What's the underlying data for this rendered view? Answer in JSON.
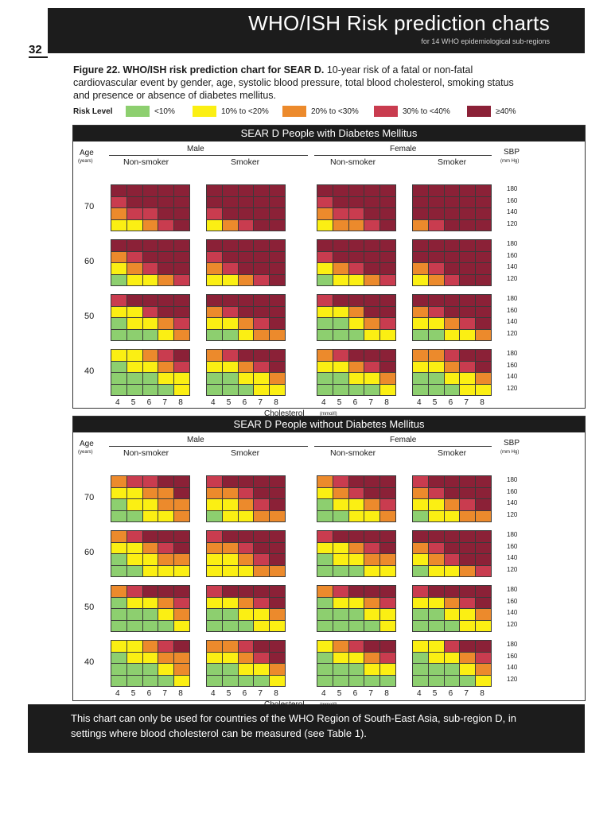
{
  "header": {
    "title": "WHO/ISH Risk prediction charts",
    "subtitle": "for 14 WHO epidemiological sub-regions"
  },
  "page_number": "32",
  "caption": {
    "label": "Figure 22. WHO/ISH risk prediction chart for SEAR D.",
    "text": "10-year risk of a fatal or non-fatal cardiovascular event by gender, age, systolic blood pressure, total blood cholesterol, smoking status and presence or absence of diabetes mellitus."
  },
  "legend": {
    "label": "Risk Level",
    "items": [
      {
        "text": "<10%",
        "color": "#8dcf6f"
      },
      {
        "text": "10% to <20%",
        "color": "#fbef13"
      },
      {
        "text": "20% to <30%",
        "color": "#ec8a2c"
      },
      {
        "text": "30% to <40%",
        "color": "#c93c4f"
      },
      {
        "text": "≥40%",
        "color": "#8b2137"
      }
    ]
  },
  "common": {
    "age_label": "Age",
    "age_unit": "(years)",
    "male": "Male",
    "female": "Female",
    "non_smoker": "Non-smoker",
    "smoker": "Smoker",
    "sbp": "SBP",
    "sbp_unit": "(mm Hg)",
    "cholesterol": "Cholesterol",
    "cholesterol_unit": "(mmol/l)",
    "ages": [
      "70",
      "60",
      "50",
      "40"
    ],
    "sbp_values": [
      "180",
      "160",
      "140",
      "120"
    ],
    "chol_values": [
      "4",
      "5",
      "6",
      "7",
      "8"
    ]
  },
  "chart_data": [
    {
      "type": "table",
      "title": "SEAR D People with Diabetes Mellitus",
      "note": "Risk level codes 1=<10%, 2=10% to <20%, 3=20% to <30%, 4=30% to <40%, 5=≥40%. Rows: SBP 180,160,140,120. Columns: cholesterol 4,5,6,7,8. Panel order: Male Non-smoker, Male Smoker, Female Non-smoker, Female Smoker.",
      "grids": [
        [
          [
            [
              5,
              5,
              5,
              5,
              5
            ],
            [
              4,
              5,
              5,
              5,
              5
            ],
            [
              3,
              4,
              4,
              5,
              5
            ],
            [
              2,
              2,
              3,
              4,
              5
            ]
          ],
          [
            [
              5,
              5,
              5,
              5,
              5
            ],
            [
              5,
              5,
              5,
              5,
              5
            ],
            [
              4,
              5,
              5,
              5,
              5
            ],
            [
              2,
              3,
              4,
              5,
              5
            ]
          ],
          [
            [
              5,
              5,
              5,
              5,
              5
            ],
            [
              4,
              5,
              5,
              5,
              5
            ],
            [
              3,
              4,
              4,
              5,
              5
            ],
            [
              2,
              3,
              3,
              4,
              5
            ]
          ],
          [
            [
              5,
              5,
              5,
              5,
              5
            ],
            [
              5,
              5,
              5,
              5,
              5
            ],
            [
              5,
              5,
              5,
              5,
              5
            ],
            [
              3,
              4,
              5,
              5,
              5
            ]
          ]
        ],
        [
          [
            [
              5,
              5,
              5,
              5,
              5
            ],
            [
              3,
              4,
              5,
              5,
              5
            ],
            [
              2,
              3,
              4,
              5,
              5
            ],
            [
              1,
              2,
              2,
              3,
              4
            ]
          ],
          [
            [
              5,
              5,
              5,
              5,
              5
            ],
            [
              4,
              5,
              5,
              5,
              5
            ],
            [
              3,
              4,
              5,
              5,
              5
            ],
            [
              2,
              2,
              3,
              4,
              5
            ]
          ],
          [
            [
              5,
              5,
              5,
              5,
              5
            ],
            [
              4,
              5,
              5,
              5,
              5
            ],
            [
              2,
              3,
              4,
              5,
              5
            ],
            [
              1,
              2,
              2,
              3,
              4
            ]
          ],
          [
            [
              5,
              5,
              5,
              5,
              5
            ],
            [
              5,
              5,
              5,
              5,
              5
            ],
            [
              3,
              4,
              5,
              5,
              5
            ],
            [
              2,
              3,
              4,
              5,
              5
            ]
          ]
        ],
        [
          [
            [
              4,
              5,
              5,
              5,
              5
            ],
            [
              2,
              2,
              4,
              5,
              5
            ],
            [
              1,
              2,
              2,
              3,
              4
            ],
            [
              1,
              1,
              1,
              2,
              3
            ]
          ],
          [
            [
              5,
              5,
              5,
              5,
              5
            ],
            [
              3,
              4,
              5,
              5,
              5
            ],
            [
              2,
              2,
              3,
              4,
              5
            ],
            [
              1,
              1,
              2,
              3,
              3
            ]
          ],
          [
            [
              4,
              5,
              5,
              5,
              5
            ],
            [
              2,
              2,
              3,
              5,
              5
            ],
            [
              1,
              1,
              2,
              3,
              4
            ],
            [
              1,
              1,
              1,
              2,
              2
            ]
          ],
          [
            [
              5,
              5,
              5,
              5,
              5
            ],
            [
              3,
              4,
              5,
              5,
              5
            ],
            [
              2,
              2,
              3,
              4,
              5
            ],
            [
              1,
              1,
              2,
              2,
              3
            ]
          ]
        ],
        [
          [
            [
              2,
              2,
              3,
              4,
              5
            ],
            [
              1,
              2,
              2,
              3,
              4
            ],
            [
              1,
              1,
              1,
              2,
              2
            ],
            [
              1,
              1,
              1,
              1,
              2
            ]
          ],
          [
            [
              3,
              4,
              5,
              5,
              5
            ],
            [
              2,
              2,
              3,
              4,
              5
            ],
            [
              1,
              1,
              2,
              2,
              3
            ],
            [
              1,
              1,
              1,
              2,
              2
            ]
          ],
          [
            [
              3,
              4,
              5,
              5,
              5
            ],
            [
              2,
              2,
              3,
              4,
              5
            ],
            [
              1,
              1,
              2,
              2,
              3
            ],
            [
              1,
              1,
              1,
              1,
              2
            ]
          ],
          [
            [
              3,
              3,
              4,
              5,
              5
            ],
            [
              2,
              2,
              3,
              4,
              5
            ],
            [
              1,
              1,
              2,
              2,
              3
            ],
            [
              1,
              1,
              1,
              2,
              2
            ]
          ]
        ]
      ]
    },
    {
      "type": "table",
      "title": "SEAR D People without Diabetes Mellitus",
      "note": "Same layout and codes as above.",
      "grids": [
        [
          [
            [
              3,
              4,
              4,
              5,
              5
            ],
            [
              2,
              2,
              3,
              3,
              5
            ],
            [
              1,
              2,
              2,
              3,
              3
            ],
            [
              1,
              1,
              2,
              2,
              3
            ]
          ],
          [
            [
              4,
              5,
              5,
              5,
              5
            ],
            [
              3,
              3,
              4,
              5,
              5
            ],
            [
              2,
              2,
              3,
              4,
              5
            ],
            [
              1,
              2,
              2,
              3,
              3
            ]
          ],
          [
            [
              3,
              4,
              5,
              5,
              5
            ],
            [
              2,
              3,
              4,
              5,
              5
            ],
            [
              1,
              2,
              2,
              3,
              4
            ],
            [
              1,
              1,
              2,
              2,
              3
            ]
          ],
          [
            [
              4,
              5,
              5,
              5,
              5
            ],
            [
              3,
              4,
              5,
              5,
              5
            ],
            [
              2,
              2,
              3,
              4,
              5
            ],
            [
              1,
              2,
              2,
              3,
              3
            ]
          ]
        ],
        [
          [
            [
              3,
              4,
              5,
              5,
              5
            ],
            [
              2,
              2,
              3,
              4,
              5
            ],
            [
              1,
              2,
              2,
              3,
              3
            ],
            [
              1,
              1,
              2,
              2,
              2
            ]
          ],
          [
            [
              4,
              5,
              5,
              5,
              5
            ],
            [
              3,
              3,
              4,
              5,
              5
            ],
            [
              2,
              2,
              3,
              4,
              5
            ],
            [
              2,
              2,
              2,
              3,
              3
            ]
          ],
          [
            [
              4,
              5,
              5,
              5,
              5
            ],
            [
              2,
              2,
              3,
              4,
              5
            ],
            [
              1,
              2,
              2,
              3,
              3
            ],
            [
              1,
              1,
              1,
              2,
              2
            ]
          ],
          [
            [
              5,
              5,
              5,
              5,
              5
            ],
            [
              3,
              4,
              5,
              5,
              5
            ],
            [
              2,
              3,
              4,
              5,
              5
            ],
            [
              1,
              2,
              2,
              3,
              4
            ]
          ]
        ],
        [
          [
            [
              3,
              4,
              5,
              5,
              5
            ],
            [
              1,
              2,
              2,
              3,
              4
            ],
            [
              1,
              1,
              1,
              2,
              3
            ],
            [
              1,
              1,
              1,
              1,
              2
            ]
          ],
          [
            [
              4,
              5,
              5,
              5,
              5
            ],
            [
              2,
              2,
              3,
              4,
              5
            ],
            [
              1,
              1,
              2,
              2,
              3
            ],
            [
              1,
              1,
              1,
              2,
              2
            ]
          ],
          [
            [
              3,
              4,
              5,
              5,
              5
            ],
            [
              1,
              2,
              2,
              3,
              4
            ],
            [
              1,
              1,
              1,
              2,
              2
            ],
            [
              1,
              1,
              1,
              1,
              2
            ]
          ],
          [
            [
              4,
              5,
              5,
              5,
              5
            ],
            [
              2,
              2,
              3,
              4,
              5
            ],
            [
              1,
              1,
              2,
              2,
              3
            ],
            [
              1,
              1,
              1,
              2,
              2
            ]
          ]
        ],
        [
          [
            [
              2,
              2,
              3,
              4,
              5
            ],
            [
              1,
              2,
              2,
              3,
              3
            ],
            [
              1,
              1,
              1,
              2,
              3
            ],
            [
              1,
              1,
              1,
              1,
              2
            ]
          ],
          [
            [
              3,
              3,
              4,
              5,
              5
            ],
            [
              2,
              2,
              3,
              4,
              5
            ],
            [
              1,
              1,
              2,
              2,
              3
            ],
            [
              1,
              1,
              1,
              1,
              2
            ]
          ],
          [
            [
              2,
              3,
              4,
              5,
              5
            ],
            [
              1,
              2,
              2,
              3,
              4
            ],
            [
              1,
              1,
              1,
              2,
              2
            ],
            [
              1,
              1,
              1,
              1,
              1
            ]
          ],
          [
            [
              2,
              2,
              4,
              5,
              5
            ],
            [
              1,
              2,
              2,
              3,
              4
            ],
            [
              1,
              1,
              1,
              2,
              3
            ],
            [
              1,
              1,
              1,
              1,
              2
            ]
          ]
        ]
      ]
    }
  ],
  "footer": {
    "text": "This chart can only be used for countries of the WHO Region of South-East Asia, sub-region D, in settings where blood cholesterol can be measured (see Table 1)."
  }
}
